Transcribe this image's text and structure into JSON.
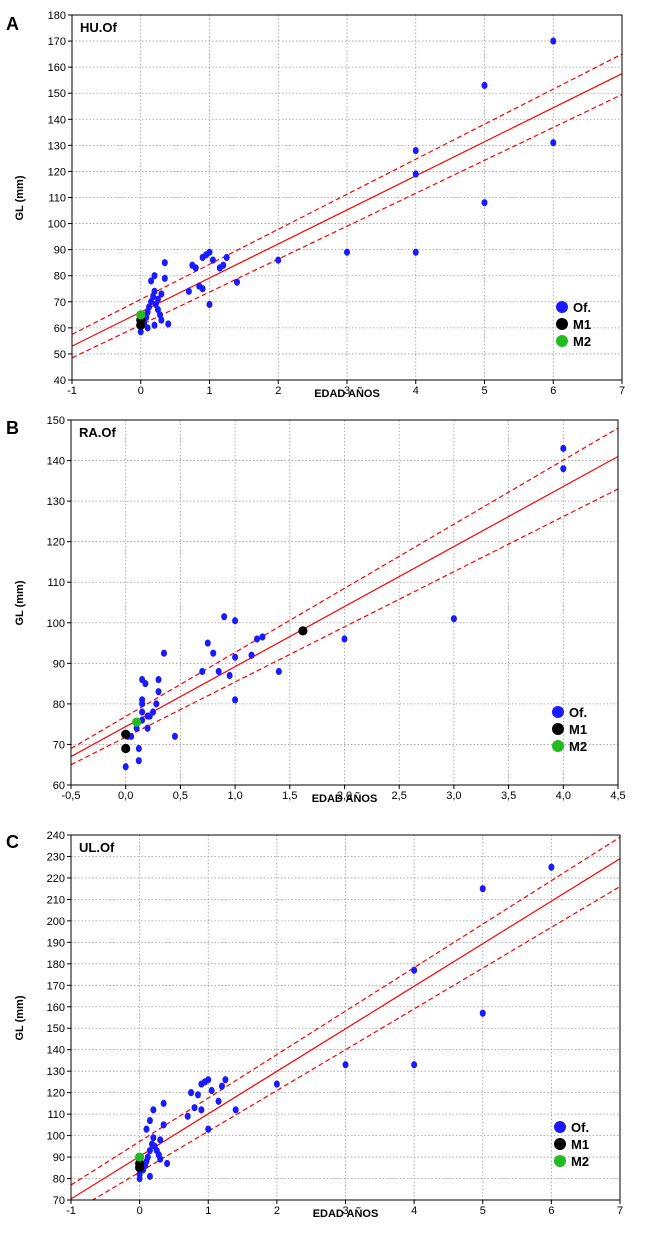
{
  "colors": {
    "of": "#1a1aff",
    "m1": "#000000",
    "m2": "#22bb22",
    "fit": "#ff0000",
    "grid": "#9a9a9a"
  },
  "chart_data": [
    {
      "type": "scatter",
      "panel_label": "A",
      "title": "HU.Of",
      "xlabel": "EDAD AÑOS",
      "ylabel": "GL (mm)",
      "xlim": [
        -1,
        7
      ],
      "ylim": [
        40,
        180
      ],
      "x_ticks": [
        -1,
        0,
        1,
        2,
        3,
        4,
        5,
        6,
        7
      ],
      "x_tick_labels": [
        "-1",
        "0",
        "1",
        "2",
        "3",
        "4",
        "5",
        "6",
        "7"
      ],
      "y_ticks": [
        40,
        50,
        60,
        70,
        80,
        90,
        100,
        110,
        120,
        130,
        140,
        150,
        160,
        170,
        180
      ],
      "y_tick_labels": [
        "40",
        "50",
        "60",
        "70",
        "80",
        "90",
        "100",
        "110",
        "120",
        "130",
        "140",
        "150",
        "160",
        "170",
        "180"
      ],
      "grid": true,
      "legend": {
        "position": "bottom-right",
        "entries": [
          "Of.",
          "M1",
          "M2"
        ]
      },
      "regression": {
        "fit": [
          [
            -1,
            53
          ],
          [
            7,
            157.5
          ]
        ],
        "upper": [
          [
            -1,
            57.5
          ],
          [
            7,
            165
          ]
        ],
        "lower": [
          [
            -1,
            48.5
          ],
          [
            7,
            149.5
          ]
        ]
      },
      "series": [
        {
          "name": "Of.",
          "points": [
            [
              0.0,
              58.5
            ],
            [
              0.0,
              60.5
            ],
            [
              0.05,
              62
            ],
            [
              0.08,
              64
            ],
            [
              0.1,
              66
            ],
            [
              0.12,
              68
            ],
            [
              0.15,
              70
            ],
            [
              0.18,
              72
            ],
            [
              0.2,
              74
            ],
            [
              0.15,
              78
            ],
            [
              0.2,
              80
            ],
            [
              0.22,
              69
            ],
            [
              0.25,
              67
            ],
            [
              0.28,
              65
            ],
            [
              0.3,
              63
            ],
            [
              0.2,
              61
            ],
            [
              0.1,
              60
            ],
            [
              0.25,
              71
            ],
            [
              0.3,
              73
            ],
            [
              0.35,
              79
            ],
            [
              0.35,
              85
            ],
            [
              0.4,
              61.5
            ],
            [
              0.7,
              74
            ],
            [
              0.75,
              84
            ],
            [
              0.8,
              83
            ],
            [
              0.85,
              76
            ],
            [
              0.9,
              75
            ],
            [
              0.9,
              87
            ],
            [
              0.95,
              88
            ],
            [
              1.0,
              89
            ],
            [
              1.0,
              69
            ],
            [
              1.05,
              86
            ],
            [
              1.15,
              83
            ],
            [
              1.2,
              84
            ],
            [
              1.25,
              87
            ],
            [
              1.4,
              77.5
            ],
            [
              2.0,
              86
            ],
            [
              3.0,
              89
            ],
            [
              4.0,
              128
            ],
            [
              4.0,
              119
            ],
            [
              4.0,
              89
            ],
            [
              5.0,
              153
            ],
            [
              5.0,
              108
            ],
            [
              6.0,
              170
            ],
            [
              6.0,
              131
            ]
          ]
        },
        {
          "name": "M1",
          "points": [
            [
              0.0,
              61
            ],
            [
              0.0,
              63
            ]
          ]
        },
        {
          "name": "M2",
          "points": [
            [
              0.0,
              65
            ]
          ]
        }
      ]
    },
    {
      "type": "scatter",
      "panel_label": "B",
      "title": "RA.Of",
      "xlabel": "EDAD AÑOS",
      "ylabel": "GL (mm)",
      "xlim": [
        -0.5,
        4.5
      ],
      "ylim": [
        60,
        150
      ],
      "x_ticks": [
        -0.5,
        0,
        0.5,
        1,
        1.5,
        2,
        2.5,
        3,
        3.5,
        4,
        4.5
      ],
      "x_tick_labels": [
        "-0,5",
        "0,0",
        "0,5",
        "1,0",
        "1,5",
        "2,0",
        "2,5",
        "3,0",
        "3,5",
        "4,0",
        "4,5"
      ],
      "y_ticks": [
        60,
        70,
        80,
        90,
        100,
        110,
        120,
        130,
        140,
        150
      ],
      "y_tick_labels": [
        "60",
        "70",
        "80",
        "90",
        "100",
        "110",
        "120",
        "130",
        "140",
        "150"
      ],
      "grid": true,
      "legend": {
        "position": "bottom-right",
        "entries": [
          "Of.",
          "M1",
          "M2"
        ]
      },
      "regression": {
        "fit": [
          [
            -0.5,
            67
          ],
          [
            4.5,
            141
          ]
        ],
        "upper": [
          [
            -0.5,
            69
          ],
          [
            4.5,
            148
          ]
        ],
        "lower": [
          [
            -0.5,
            65
          ],
          [
            4.5,
            133
          ]
        ]
      },
      "series": [
        {
          "name": "Of.",
          "points": [
            [
              0.0,
              64.5
            ],
            [
              0.02,
              72
            ],
            [
              0.05,
              72
            ],
            [
              0.1,
              74
            ],
            [
              0.12,
              66
            ],
            [
              0.12,
              69
            ],
            [
              0.15,
              76
            ],
            [
              0.15,
              78
            ],
            [
              0.15,
              80
            ],
            [
              0.15,
              81
            ],
            [
              0.15,
              86
            ],
            [
              0.18,
              85
            ],
            [
              0.2,
              74
            ],
            [
              0.2,
              77
            ],
            [
              0.22,
              77
            ],
            [
              0.25,
              78
            ],
            [
              0.28,
              80
            ],
            [
              0.3,
              83
            ],
            [
              0.3,
              86
            ],
            [
              0.35,
              92.5
            ],
            [
              0.45,
              72
            ],
            [
              0.7,
              88
            ],
            [
              0.75,
              95
            ],
            [
              0.8,
              92.5
            ],
            [
              0.85,
              88
            ],
            [
              0.9,
              101.5
            ],
            [
              0.95,
              87
            ],
            [
              1.0,
              100.5
            ],
            [
              1.0,
              91.5
            ],
            [
              1.0,
              81
            ],
            [
              1.15,
              92
            ],
            [
              1.2,
              96
            ],
            [
              1.25,
              96.5
            ],
            [
              1.4,
              88
            ],
            [
              2.0,
              96
            ],
            [
              3.0,
              101
            ],
            [
              4.0,
              143
            ],
            [
              4.0,
              138
            ]
          ]
        },
        {
          "name": "M1",
          "points": [
            [
              0.0,
              72.5
            ],
            [
              0.0,
              69
            ],
            [
              1.62,
              98
            ]
          ]
        },
        {
          "name": "M2",
          "points": [
            [
              0.1,
              75.5
            ]
          ]
        }
      ]
    },
    {
      "type": "scatter",
      "panel_label": "C",
      "title": "UL.Of",
      "xlabel": "EDAD AÑOS",
      "ylabel": "GL (mm)",
      "xlim": [
        -1,
        7
      ],
      "ylim": [
        70,
        240
      ],
      "x_ticks": [
        -1,
        0,
        1,
        2,
        3,
        4,
        5,
        6,
        7
      ],
      "x_tick_labels": [
        "-1",
        "0",
        "1",
        "2",
        "3",
        "4",
        "5",
        "6",
        "7"
      ],
      "y_ticks": [
        70,
        80,
        90,
        100,
        110,
        120,
        130,
        140,
        150,
        160,
        170,
        180,
        190,
        200,
        210,
        220,
        230,
        240
      ],
      "y_tick_labels": [
        "70",
        "80",
        "90",
        "100",
        "110",
        "120",
        "130",
        "140",
        "150",
        "160",
        "170",
        "180",
        "190",
        "200",
        "210",
        "220",
        "230",
        "240"
      ],
      "grid": true,
      "legend": {
        "position": "bottom-right",
        "entries": [
          "Of.",
          "M1",
          "M2"
        ]
      },
      "regression": {
        "fit": [
          [
            -1,
            70.5
          ],
          [
            7,
            229
          ]
        ],
        "upper": [
          [
            -1,
            77
          ],
          [
            7,
            239
          ]
        ],
        "lower": [
          [
            -1,
            64
          ],
          [
            7,
            216
          ]
        ]
      },
      "series": [
        {
          "name": "Of.",
          "points": [
            [
              0.0,
              80
            ],
            [
              0.0,
              82
            ],
            [
              0.05,
              84
            ],
            [
              0.08,
              86
            ],
            [
              0.1,
              88
            ],
            [
              0.12,
              90
            ],
            [
              0.15,
              93
            ],
            [
              0.18,
              96
            ],
            [
              0.2,
              99
            ],
            [
              0.1,
              103
            ],
            [
              0.15,
              107
            ],
            [
              0.2,
              112
            ],
            [
              0.22,
              95
            ],
            [
              0.25,
              93
            ],
            [
              0.28,
              91
            ],
            [
              0.3,
              89
            ],
            [
              0.15,
              81
            ],
            [
              0.3,
              98
            ],
            [
              0.35,
              105
            ],
            [
              0.35,
              115
            ],
            [
              0.4,
              87
            ],
            [
              0.7,
              109
            ],
            [
              0.75,
              120
            ],
            [
              0.8,
              113
            ],
            [
              0.85,
              119
            ],
            [
              0.9,
              112
            ],
            [
              0.9,
              124
            ],
            [
              0.95,
              125
            ],
            [
              1.0,
              126
            ],
            [
              1.0,
              103
            ],
            [
              1.05,
              121
            ],
            [
              1.15,
              116
            ],
            [
              1.2,
              123
            ],
            [
              1.25,
              126
            ],
            [
              1.4,
              112
            ],
            [
              2.0,
              124
            ],
            [
              3.0,
              133
            ],
            [
              4.0,
              177
            ],
            [
              4.0,
              133
            ],
            [
              5.0,
              215
            ],
            [
              5.0,
              157
            ],
            [
              6.0,
              225
            ]
          ]
        },
        {
          "name": "M1",
          "points": [
            [
              0.0,
              85
            ],
            [
              0.0,
              87
            ]
          ]
        },
        {
          "name": "M2",
          "points": [
            [
              0.0,
              90
            ]
          ]
        }
      ]
    }
  ]
}
